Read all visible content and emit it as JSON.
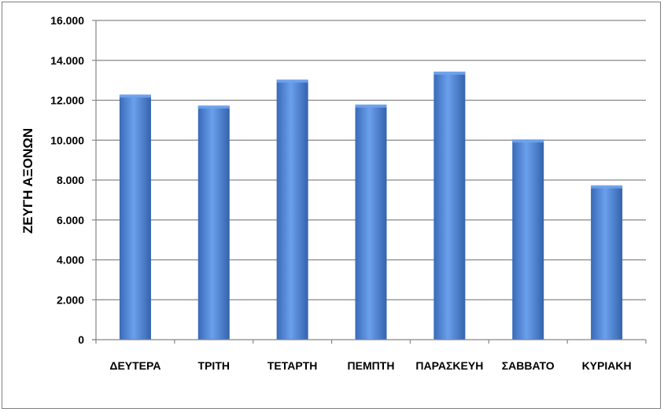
{
  "chart_data": {
    "type": "bar",
    "title": "",
    "xlabel": "",
    "ylabel": "ΖΕΥΓΗ ΑΞΟΝΩΝ",
    "categories": [
      "ΔΕΥΤΕΡΑ",
      "ΤΡΙΤΗ",
      "ΤΕΤΑΡΤΗ",
      "ΠΕΜΠΤΗ",
      "ΠΑΡΑΣΚΕΥΗ",
      "ΣΑΒΒΑΤΟ",
      "ΚΥΡΙΑΚΗ"
    ],
    "values": [
      12250,
      11700,
      13000,
      11750,
      13400,
      10000,
      7700
    ],
    "ylim": [
      0,
      16000
    ],
    "yticks": [
      0,
      2000,
      4000,
      6000,
      8000,
      10000,
      12000,
      14000,
      16000
    ],
    "ytick_labels": [
      "0",
      "2.000",
      "4.000",
      "6.000",
      "8.000",
      "10.000",
      "12.000",
      "14.000",
      "16.000"
    ],
    "grid": true,
    "legend": "none",
    "colors": {
      "bar": "#4a7fcf",
      "bar_light": "#6fa3ec",
      "bar_dark": "#2e5aa0",
      "grid": "#868686"
    }
  }
}
